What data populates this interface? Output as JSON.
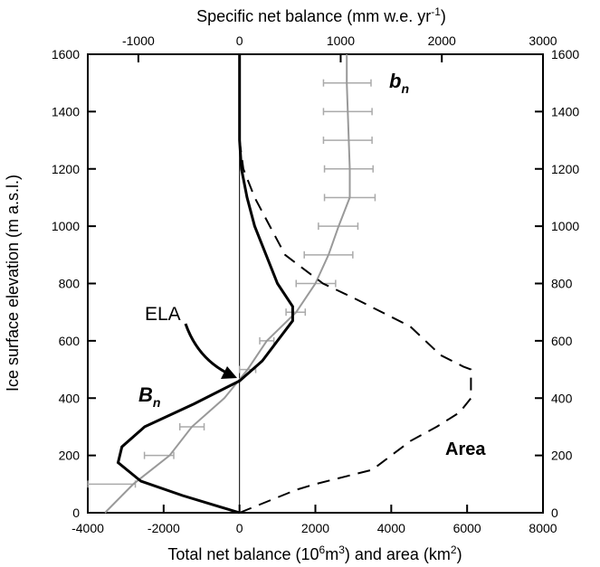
{
  "chart_data": {
    "type": "line",
    "xlabel_bottom": "Total net balance (10",
    "xlabel_bottom_sup1": "6",
    "xlabel_bottom_mid": "m",
    "xlabel_bottom_sup2": "3",
    "xlabel_bottom_end": ") and area (km",
    "xlabel_bottom_sup3": "2",
    "xlabel_bottom_close": ")",
    "xlabel_top": "Specific net balance (mm w.e. yr",
    "xlabel_top_sup": "-1",
    "xlabel_top_close": ")",
    "ylabel": "Ice surface elevation (m a.s.l.)",
    "x_bottom": {
      "min": -4000,
      "max": 8000,
      "ticks": [
        "-4000",
        "-2000",
        "0",
        "2000",
        "4000",
        "6000",
        "8000"
      ]
    },
    "x_top": {
      "min": -1500,
      "max": 3000,
      "ticks": [
        "-1000",
        "0",
        "1000",
        "2000",
        "3000"
      ]
    },
    "y": {
      "min": 0,
      "max": 1600,
      "ticks": [
        "0",
        "200",
        "400",
        "600",
        "800",
        "1000",
        "1200",
        "1400",
        "1600"
      ]
    },
    "annotations": {
      "ela": "ELA",
      "Bn": "B",
      "Bn_sub": "n",
      "bn": "b",
      "bn_sub": "n",
      "area": "Area"
    },
    "series": [
      {
        "name": "B_n",
        "axis": "bottom",
        "style": "solid",
        "color": "#000000",
        "points": [
          [
            0,
            0
          ],
          [
            -500,
            20
          ],
          [
            -1500,
            60
          ],
          [
            -2600,
            110
          ],
          [
            -3200,
            175
          ],
          [
            -3100,
            230
          ],
          [
            -2500,
            300
          ],
          [
            -1200,
            380
          ],
          [
            0,
            460
          ],
          [
            600,
            530
          ],
          [
            1000,
            600
          ],
          [
            1400,
            670
          ],
          [
            1400,
            720
          ],
          [
            1000,
            800
          ],
          [
            700,
            900
          ],
          [
            400,
            1000
          ],
          [
            200,
            1100
          ],
          [
            50,
            1200
          ],
          [
            0,
            1300
          ],
          [
            0,
            1400
          ],
          [
            0,
            1500
          ],
          [
            0,
            1600
          ]
        ]
      },
      {
        "name": "Area",
        "axis": "bottom",
        "style": "dashed",
        "color": "#000000",
        "points": [
          [
            0,
            0
          ],
          [
            1500,
            80
          ],
          [
            2000,
            100
          ],
          [
            3500,
            150
          ],
          [
            4500,
            250
          ],
          [
            5200,
            300
          ],
          [
            5800,
            350
          ],
          [
            6100,
            400
          ],
          [
            6100,
            500
          ],
          [
            5900,
            510
          ],
          [
            5300,
            550
          ],
          [
            4500,
            650
          ],
          [
            3000,
            750
          ],
          [
            2200,
            800
          ],
          [
            1700,
            850
          ],
          [
            1200,
            900
          ],
          [
            800,
            1000
          ],
          [
            400,
            1100
          ],
          [
            100,
            1200
          ],
          [
            0,
            1300
          ],
          [
            0,
            1600
          ]
        ]
      },
      {
        "name": "b_n",
        "axis": "top",
        "style": "solid",
        "color": "#999999",
        "points": [
          [
            -1330,
            0
          ],
          [
            -1050,
            100
          ],
          [
            -690,
            200
          ],
          [
            -470,
            300
          ],
          [
            -150,
            400
          ],
          [
            80,
            500
          ],
          [
            270,
            600
          ],
          [
            560,
            700
          ],
          [
            750,
            800
          ],
          [
            880,
            900
          ],
          [
            980,
            1000
          ],
          [
            1090,
            1100
          ],
          [
            1090,
            1200
          ],
          [
            1080,
            1300
          ],
          [
            1070,
            1400
          ],
          [
            1060,
            1500
          ],
          [
            1060,
            1600
          ]
        ],
        "error_bars": [
          {
            "y": 100,
            "xmin": -1500,
            "xmax": -1030
          },
          {
            "y": 200,
            "xmin": -940,
            "xmax": -650
          },
          {
            "y": 300,
            "xmin": -590,
            "xmax": -350
          },
          {
            "y": 500,
            "xmin": 0,
            "xmax": 160
          },
          {
            "y": 600,
            "xmin": 200,
            "xmax": 340
          },
          {
            "y": 700,
            "xmin": 460,
            "xmax": 650
          },
          {
            "y": 800,
            "xmin": 560,
            "xmax": 950
          },
          {
            "y": 900,
            "xmin": 640,
            "xmax": 1120
          },
          {
            "y": 1000,
            "xmin": 780,
            "xmax": 1170
          },
          {
            "y": 1100,
            "xmin": 840,
            "xmax": 1340
          },
          {
            "y": 1200,
            "xmin": 840,
            "xmax": 1320
          },
          {
            "y": 1300,
            "xmin": 830,
            "xmax": 1310
          },
          {
            "y": 1400,
            "xmin": 830,
            "xmax": 1310
          },
          {
            "y": 1500,
            "xmin": 830,
            "xmax": 1300
          }
        ]
      }
    ]
  }
}
